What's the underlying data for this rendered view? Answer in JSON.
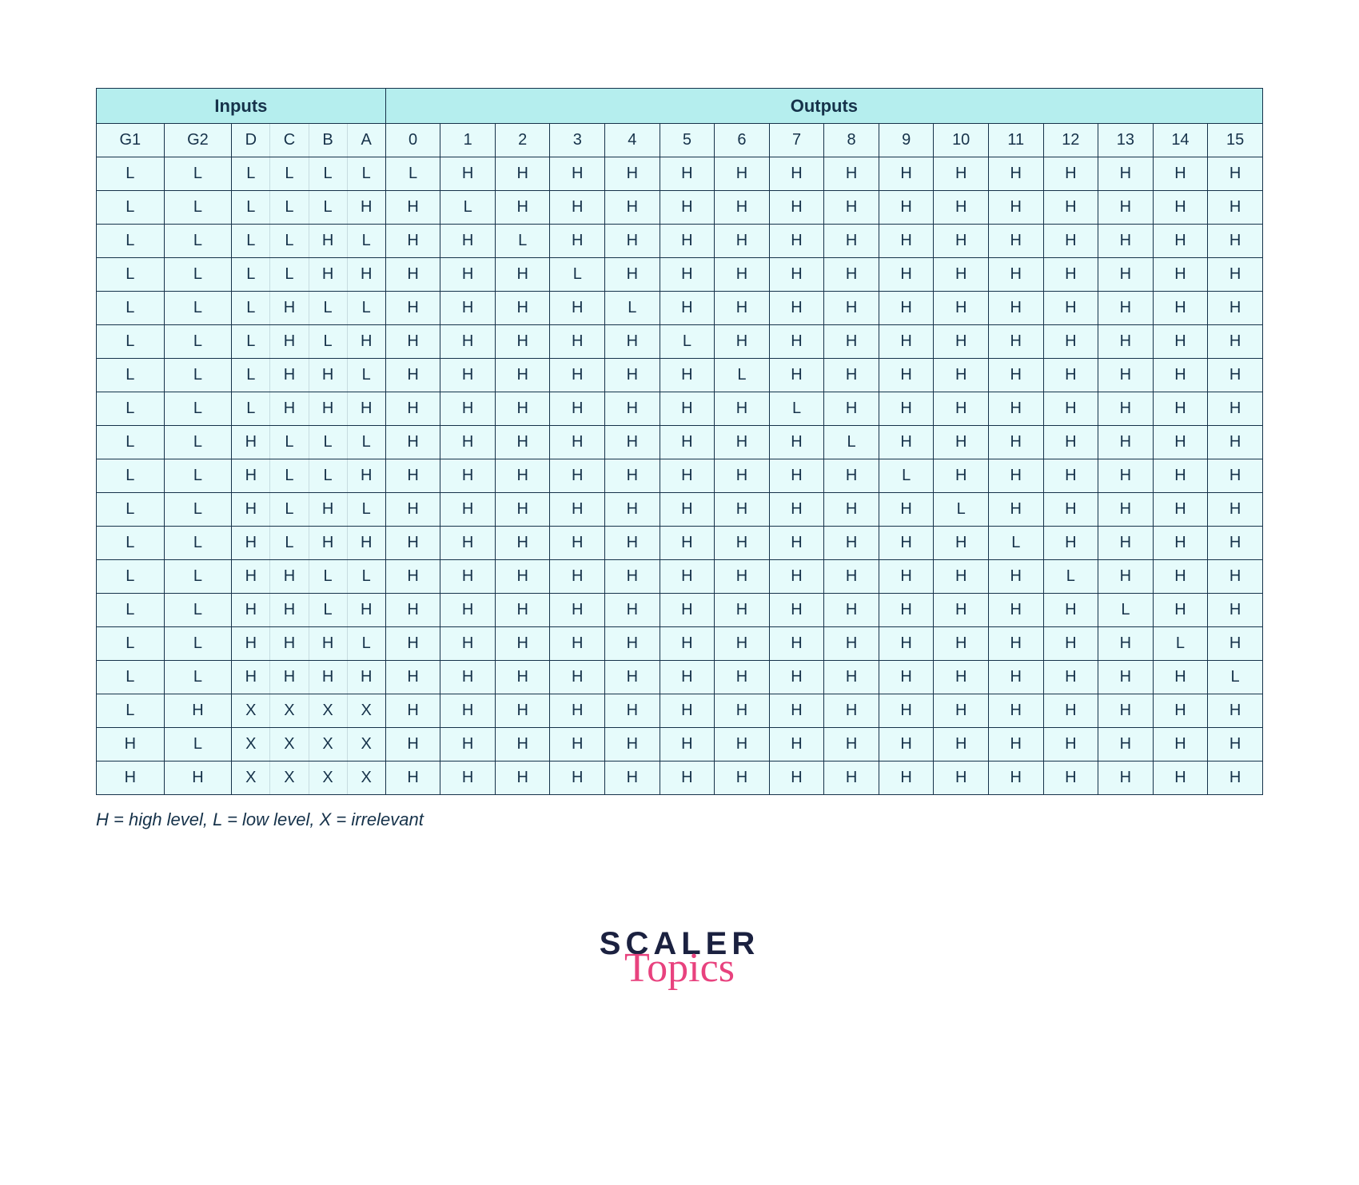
{
  "table": {
    "type": "truth-table",
    "background_color": "#ffffff",
    "cell_bg": "#e6fbfb",
    "header_bg": "#b5eeee",
    "border_color": "#16324a",
    "text_color": "#16324a",
    "font_size_header": 22,
    "font_size_cell": 20,
    "group_headers": {
      "inputs": "Inputs",
      "outputs": "Outputs"
    },
    "input_columns": [
      "G1",
      "G2",
      "D",
      "C",
      "B",
      "A"
    ],
    "output_columns": [
      "0",
      "1",
      "2",
      "3",
      "4",
      "5",
      "6",
      "7",
      "8",
      "9",
      "10",
      "11",
      "12",
      "13",
      "14",
      "15"
    ],
    "rows": [
      {
        "in": [
          "L",
          "L",
          "L",
          "L",
          "L",
          "L"
        ],
        "out": [
          "L",
          "H",
          "H",
          "H",
          "H",
          "H",
          "H",
          "H",
          "H",
          "H",
          "H",
          "H",
          "H",
          "H",
          "H",
          "H"
        ]
      },
      {
        "in": [
          "L",
          "L",
          "L",
          "L",
          "L",
          "H"
        ],
        "out": [
          "H",
          "L",
          "H",
          "H",
          "H",
          "H",
          "H",
          "H",
          "H",
          "H",
          "H",
          "H",
          "H",
          "H",
          "H",
          "H"
        ]
      },
      {
        "in": [
          "L",
          "L",
          "L",
          "L",
          "H",
          "L"
        ],
        "out": [
          "H",
          "H",
          "L",
          "H",
          "H",
          "H",
          "H",
          "H",
          "H",
          "H",
          "H",
          "H",
          "H",
          "H",
          "H",
          "H"
        ]
      },
      {
        "in": [
          "L",
          "L",
          "L",
          "L",
          "H",
          "H"
        ],
        "out": [
          "H",
          "H",
          "H",
          "L",
          "H",
          "H",
          "H",
          "H",
          "H",
          "H",
          "H",
          "H",
          "H",
          "H",
          "H",
          "H"
        ]
      },
      {
        "in": [
          "L",
          "L",
          "L",
          "H",
          "L",
          "L"
        ],
        "out": [
          "H",
          "H",
          "H",
          "H",
          "L",
          "H",
          "H",
          "H",
          "H",
          "H",
          "H",
          "H",
          "H",
          "H",
          "H",
          "H"
        ]
      },
      {
        "in": [
          "L",
          "L",
          "L",
          "H",
          "L",
          "H"
        ],
        "out": [
          "H",
          "H",
          "H",
          "H",
          "H",
          "L",
          "H",
          "H",
          "H",
          "H",
          "H",
          "H",
          "H",
          "H",
          "H",
          "H"
        ]
      },
      {
        "in": [
          "L",
          "L",
          "L",
          "H",
          "H",
          "L"
        ],
        "out": [
          "H",
          "H",
          "H",
          "H",
          "H",
          "H",
          "L",
          "H",
          "H",
          "H",
          "H",
          "H",
          "H",
          "H",
          "H",
          "H"
        ]
      },
      {
        "in": [
          "L",
          "L",
          "L",
          "H",
          "H",
          "H"
        ],
        "out": [
          "H",
          "H",
          "H",
          "H",
          "H",
          "H",
          "H",
          "L",
          "H",
          "H",
          "H",
          "H",
          "H",
          "H",
          "H",
          "H"
        ]
      },
      {
        "in": [
          "L",
          "L",
          "H",
          "L",
          "L",
          "L"
        ],
        "out": [
          "H",
          "H",
          "H",
          "H",
          "H",
          "H",
          "H",
          "H",
          "L",
          "H",
          "H",
          "H",
          "H",
          "H",
          "H",
          "H"
        ]
      },
      {
        "in": [
          "L",
          "L",
          "H",
          "L",
          "L",
          "H"
        ],
        "out": [
          "H",
          "H",
          "H",
          "H",
          "H",
          "H",
          "H",
          "H",
          "H",
          "L",
          "H",
          "H",
          "H",
          "H",
          "H",
          "H"
        ]
      },
      {
        "in": [
          "L",
          "L",
          "H",
          "L",
          "H",
          "L"
        ],
        "out": [
          "H",
          "H",
          "H",
          "H",
          "H",
          "H",
          "H",
          "H",
          "H",
          "H",
          "L",
          "H",
          "H",
          "H",
          "H",
          "H"
        ]
      },
      {
        "in": [
          "L",
          "L",
          "H",
          "L",
          "H",
          "H"
        ],
        "out": [
          "H",
          "H",
          "H",
          "H",
          "H",
          "H",
          "H",
          "H",
          "H",
          "H",
          "H",
          "L",
          "H",
          "H",
          "H",
          "H"
        ]
      },
      {
        "in": [
          "L",
          "L",
          "H",
          "H",
          "L",
          "L"
        ],
        "out": [
          "H",
          "H",
          "H",
          "H",
          "H",
          "H",
          "H",
          "H",
          "H",
          "H",
          "H",
          "H",
          "L",
          "H",
          "H",
          "H"
        ]
      },
      {
        "in": [
          "L",
          "L",
          "H",
          "H",
          "L",
          "H"
        ],
        "out": [
          "H",
          "H",
          "H",
          "H",
          "H",
          "H",
          "H",
          "H",
          "H",
          "H",
          "H",
          "H",
          "H",
          "L",
          "H",
          "H"
        ]
      },
      {
        "in": [
          "L",
          "L",
          "H",
          "H",
          "H",
          "L"
        ],
        "out": [
          "H",
          "H",
          "H",
          "H",
          "H",
          "H",
          "H",
          "H",
          "H",
          "H",
          "H",
          "H",
          "H",
          "H",
          "L",
          "H"
        ]
      },
      {
        "in": [
          "L",
          "L",
          "H",
          "H",
          "H",
          "H"
        ],
        "out": [
          "H",
          "H",
          "H",
          "H",
          "H",
          "H",
          "H",
          "H",
          "H",
          "H",
          "H",
          "H",
          "H",
          "H",
          "H",
          "L"
        ]
      },
      {
        "in": [
          "L",
          "H",
          "X",
          "X",
          "X",
          "X"
        ],
        "out": [
          "H",
          "H",
          "H",
          "H",
          "H",
          "H",
          "H",
          "H",
          "H",
          "H",
          "H",
          "H",
          "H",
          "H",
          "H",
          "H"
        ]
      },
      {
        "in": [
          "H",
          "L",
          "X",
          "X",
          "X",
          "X"
        ],
        "out": [
          "H",
          "H",
          "H",
          "H",
          "H",
          "H",
          "H",
          "H",
          "H",
          "H",
          "H",
          "H",
          "H",
          "H",
          "H",
          "H"
        ]
      },
      {
        "in": [
          "H",
          "H",
          "X",
          "X",
          "X",
          "X"
        ],
        "out": [
          "H",
          "H",
          "H",
          "H",
          "H",
          "H",
          "H",
          "H",
          "H",
          "H",
          "H",
          "H",
          "H",
          "H",
          "H",
          "H"
        ]
      }
    ],
    "legend": "H = high level, L = low level, X = irrelevant"
  },
  "logo": {
    "line1": "SCALER",
    "line2": "Topics",
    "color1": "#1b2140",
    "color2": "#e8427e"
  }
}
